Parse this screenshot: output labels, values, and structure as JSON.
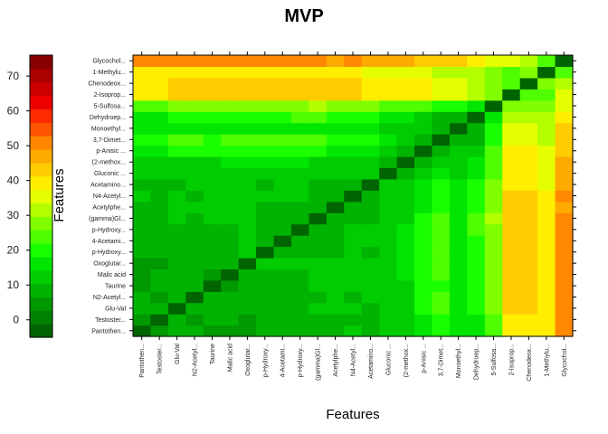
{
  "chart_data": {
    "type": "heatmap",
    "title": "MVP",
    "xlabel": "Features",
    "ylabel": "Features",
    "colorbar": {
      "range": [
        -5,
        76
      ],
      "ticks": [
        0,
        10,
        20,
        30,
        40,
        50,
        60,
        70
      ],
      "colors": [
        "#006400",
        "#008000",
        "#009900",
        "#00b300",
        "#00cc00",
        "#00e600",
        "#1aff00",
        "#4dff00",
        "#80ff00",
        "#b3ff00",
        "#e6ff00",
        "#ffee00",
        "#ffcc00",
        "#ffaa00",
        "#ff8800",
        "#ff5500",
        "#ff2a00",
        "#ee0000",
        "#cc0000",
        "#aa0000",
        "#880000"
      ]
    },
    "features": [
      "Pantothen...",
      "Testoster...",
      "Glu-Val",
      "N2-Acetyl...",
      "Taurine",
      "Malic acid",
      "Oxoglutar...",
      "p-Hydroxy...",
      "4-Acetami...",
      "p-Hydroxy...",
      "(gamma)Gl...",
      "Acetylphe...",
      "N4-Acetyl...",
      "Acetamino...",
      "Gluconic ...",
      "(2-methox...",
      "p-Anisic ...",
      "3,7-Dimet...",
      "Monoethyl...",
      "Dehydroep...",
      "5-Sulfosa...",
      "2-Isoprop...",
      "Chenodeox...",
      "1-Methylu...",
      "Glycochol..."
    ],
    "x_tick_labels": [
      "Pantothen...",
      "Testoster...",
      "Glu-Val",
      "N2-Acetyl...",
      "Taurine",
      "Malic acid",
      "Oxoglutar...",
      "p-Hydroxy...",
      "4-Acetami...",
      "p-Hydroxy...",
      "(gamma)Gl...",
      "Acetylphe...",
      "N4-Acetyl...",
      "Acetamino...",
      "Gluconic ...",
      "(2-methox...",
      "p-Anisic ...",
      "3,7-Dimet...",
      "Monoethyl...",
      "Dehydroep...",
      "5-Sulfosa...",
      "2-Isoprop...",
      "Chenodeox...",
      "1-Methylu...",
      "Glycochol..."
    ],
    "y_tick_labels": [
      "Pantothen...",
      "Testoster...",
      "Glu-Val",
      "N2-Acetyl...",
      "Taurine",
      "Malic acid",
      "Oxoglutar...",
      "p-Hydroxy...",
      "4-Acetami...",
      "p-Hydroxy...",
      "(gamma)Gl...",
      "Acetylphe...",
      "N4-Acetyl...",
      "Acetamino...",
      "Gluconic ...",
      "(2-methox...",
      "p-Anisic ...",
      "3,7-Dimet...",
      "Monoethyl...",
      "Dehydroep...",
      "5-Sulfosa...",
      "2-Isoprop...",
      "Chenodeox...",
      "1-Methylu...",
      "Glycochol..."
    ],
    "values": [
      [
        -5,
        5,
        8,
        8,
        6,
        5,
        4,
        8,
        8,
        9,
        9,
        9,
        12,
        8,
        11,
        13,
        18,
        20,
        15,
        17,
        25,
        41,
        40,
        38,
        49
      ],
      [
        5,
        -5,
        7,
        6,
        7,
        7,
        4,
        7,
        7,
        8,
        9,
        9,
        9,
        9,
        11,
        13,
        17,
        20,
        15,
        17,
        25,
        41,
        40,
        38,
        49
      ],
      [
        8,
        7,
        -5,
        7,
        8,
        8,
        8,
        9,
        9,
        9,
        11,
        11,
        12,
        10,
        13,
        14,
        19,
        22,
        17,
        21,
        27,
        43,
        43,
        38,
        49
      ],
      [
        8,
        6,
        7,
        -5,
        9,
        9,
        8,
        10,
        9,
        9,
        10,
        11,
        10,
        11,
        13,
        14,
        19,
        22,
        18,
        21,
        27,
        43,
        43,
        38,
        49
      ],
      [
        6,
        7,
        8,
        9,
        -5,
        6,
        7,
        9,
        9,
        9,
        11,
        11,
        12,
        11,
        13,
        14,
        19,
        21,
        16,
        20,
        27,
        42,
        42,
        38,
        49
      ],
      [
        5,
        7,
        8,
        9,
        6,
        -5,
        8,
        9,
        9,
        9,
        11,
        11,
        12,
        11,
        13,
        15,
        19,
        22,
        17,
        21,
        28,
        43,
        43,
        39,
        50
      ],
      [
        4,
        4,
        8,
        8,
        7,
        8,
        -5,
        11,
        11,
        11,
        14,
        11,
        12,
        12,
        13,
        15,
        20,
        22,
        17,
        21,
        27,
        43,
        43,
        39,
        50
      ],
      [
        8,
        7,
        9,
        10,
        9,
        9,
        11,
        -5,
        8,
        8,
        9,
        10,
        11,
        10,
        13,
        15,
        19,
        22,
        17,
        21,
        28,
        44,
        44,
        40,
        50
      ],
      [
        8,
        7,
        9,
        9,
        9,
        9,
        11,
        8,
        -5,
        9,
        9,
        10,
        11,
        11,
        13,
        15,
        19,
        22,
        17,
        21,
        28,
        44,
        44,
        40,
        51
      ],
      [
        9,
        8,
        9,
        9,
        9,
        9,
        11,
        8,
        9,
        -5,
        8,
        10,
        11,
        11,
        13,
        15,
        20,
        23,
        18,
        22,
        29,
        45,
        45,
        41,
        51
      ],
      [
        9,
        9,
        11,
        10,
        11,
        11,
        14,
        9,
        9,
        8,
        -5,
        9,
        10,
        10,
        12,
        14,
        19,
        22,
        18,
        22,
        30,
        44,
        44,
        40,
        50
      ],
      [
        9,
        9,
        11,
        11,
        11,
        11,
        11,
        10,
        10,
        10,
        9,
        -5,
        8,
        8,
        12,
        13,
        17,
        20,
        15,
        19,
        27,
        42,
        42,
        38,
        48
      ],
      [
        12,
        9,
        12,
        10,
        12,
        12,
        12,
        11,
        11,
        11,
        10,
        8,
        -5,
        7,
        12,
        13,
        17,
        20,
        16,
        20,
        28,
        43,
        43,
        39,
        49
      ],
      [
        8,
        9,
        10,
        11,
        11,
        11,
        12,
        10,
        11,
        11,
        10,
        8,
        7,
        -5,
        11,
        12,
        17,
        20,
        15,
        19,
        26,
        41,
        41,
        37,
        48
      ],
      [
        11,
        11,
        13,
        13,
        13,
        13,
        13,
        13,
        13,
        13,
        12,
        12,
        12,
        11,
        -5,
        10,
        14,
        17,
        13,
        17,
        25,
        41,
        41,
        37,
        47
      ],
      [
        13,
        13,
        14,
        14,
        14,
        15,
        15,
        15,
        15,
        15,
        14,
        13,
        13,
        12,
        10,
        -5,
        10,
        14,
        11,
        15,
        24,
        40,
        40,
        36,
        46
      ],
      [
        18,
        17,
        19,
        19,
        19,
        19,
        20,
        19,
        19,
        20,
        19,
        17,
        17,
        17,
        14,
        10,
        -5,
        10,
        11,
        13,
        22,
        38,
        38,
        34,
        44
      ],
      [
        20,
        20,
        22,
        22,
        21,
        22,
        22,
        22,
        22,
        23,
        22,
        20,
        20,
        20,
        17,
        14,
        10,
        -5,
        7,
        10,
        21,
        36,
        36,
        32,
        43
      ],
      [
        15,
        15,
        17,
        18,
        16,
        17,
        17,
        17,
        17,
        18,
        18,
        15,
        16,
        15,
        13,
        11,
        11,
        7,
        -5,
        8,
        21,
        36,
        36,
        32,
        43
      ],
      [
        17,
        17,
        21,
        21,
        20,
        21,
        21,
        21,
        21,
        22,
        22,
        19,
        20,
        19,
        17,
        15,
        13,
        10,
        8,
        -5,
        17,
        33,
        33,
        30,
        40
      ],
      [
        25,
        25,
        27,
        27,
        27,
        28,
        27,
        28,
        28,
        29,
        30,
        27,
        28,
        26,
        25,
        24,
        22,
        21,
        21,
        17,
        -5,
        28,
        26,
        26,
        36
      ],
      [
        41,
        41,
        43,
        43,
        42,
        43,
        43,
        44,
        44,
        45,
        44,
        42,
        43,
        41,
        41,
        40,
        38,
        36,
        36,
        33,
        28,
        -5,
        22,
        25,
        36
      ],
      [
        40,
        40,
        43,
        43,
        42,
        43,
        43,
        44,
        44,
        45,
        44,
        42,
        43,
        41,
        41,
        40,
        38,
        36,
        36,
        33,
        26,
        22,
        -5,
        28,
        31
      ],
      [
        38,
        38,
        38,
        38,
        38,
        39,
        39,
        40,
        40,
        41,
        40,
        38,
        39,
        37,
        37,
        36,
        34,
        32,
        32,
        30,
        26,
        25,
        28,
        -5,
        22
      ],
      [
        49,
        49,
        49,
        49,
        49,
        50,
        50,
        50,
        51,
        51,
        50,
        48,
        49,
        48,
        47,
        46,
        44,
        43,
        43,
        40,
        36,
        36,
        31,
        22,
        -5
      ]
    ]
  }
}
